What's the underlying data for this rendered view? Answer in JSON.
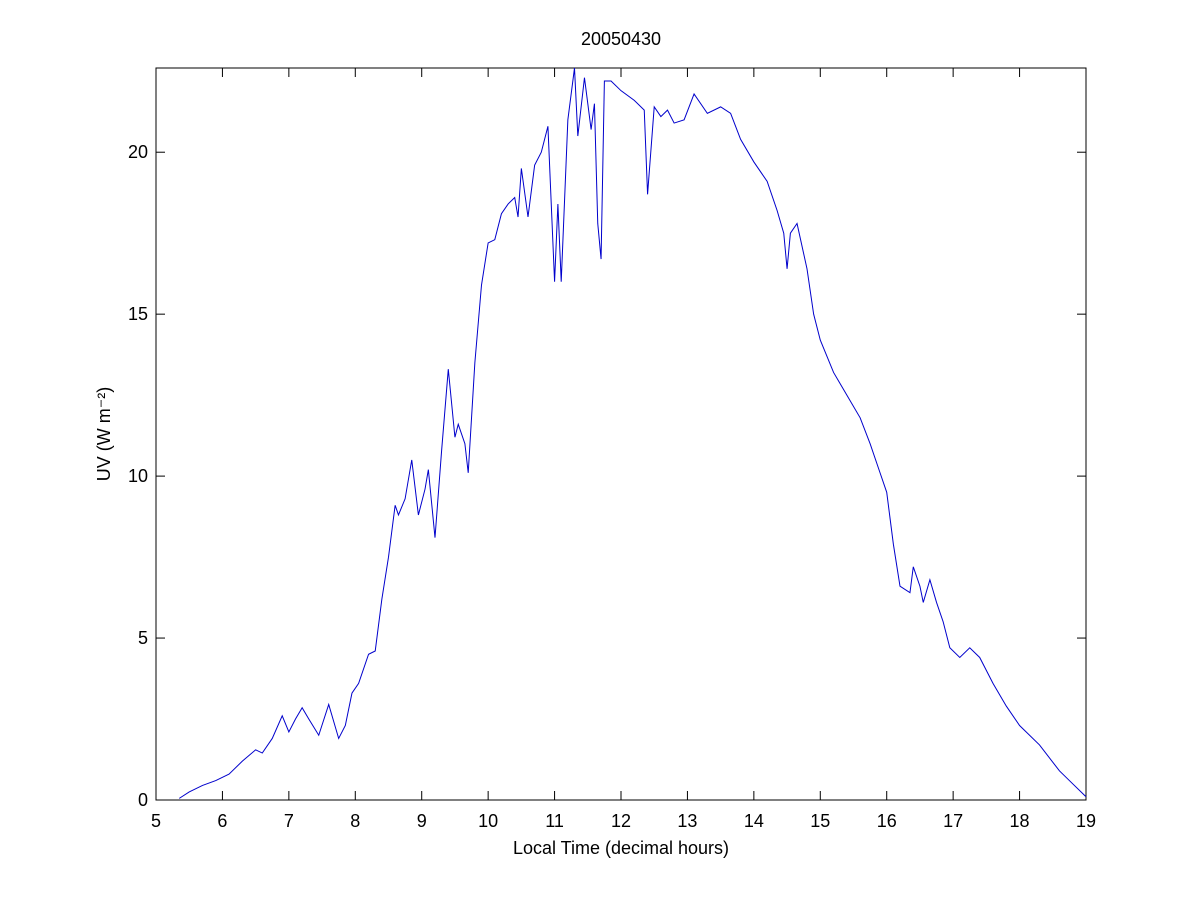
{
  "chart_data": {
    "type": "line",
    "title": "20050430",
    "xlabel": "Local Time (decimal hours)",
    "ylabel": "UV (W m⁻²)",
    "xlim": [
      5,
      19
    ],
    "ylim": [
      0,
      22.6
    ],
    "xticks": [
      5,
      6,
      7,
      8,
      9,
      10,
      11,
      12,
      13,
      14,
      15,
      16,
      17,
      18,
      19
    ],
    "yticks": [
      0,
      5,
      10,
      15,
      20
    ],
    "series": [
      {
        "color": "#0000cc",
        "x": [
          5.35,
          5.5,
          5.7,
          5.9,
          6.1,
          6.3,
          6.5,
          6.6,
          6.75,
          6.9,
          7.0,
          7.1,
          7.2,
          7.3,
          7.45,
          7.6,
          7.75,
          7.85,
          7.95,
          8.05,
          8.2,
          8.3,
          8.4,
          8.5,
          8.6,
          8.65,
          8.75,
          8.85,
          8.95,
          9.05,
          9.1,
          9.2,
          9.3,
          9.4,
          9.5,
          9.55,
          9.65,
          9.7,
          9.8,
          9.9,
          10.0,
          10.1,
          10.2,
          10.3,
          10.4,
          10.45,
          10.5,
          10.6,
          10.7,
          10.8,
          10.9,
          11.0,
          11.05,
          11.1,
          11.2,
          11.3,
          11.35,
          11.45,
          11.55,
          11.6,
          11.65,
          11.7,
          11.75,
          11.85,
          12.0,
          12.2,
          12.35,
          12.4,
          12.5,
          12.6,
          12.7,
          12.8,
          12.95,
          13.1,
          13.3,
          13.5,
          13.65,
          13.8,
          14.0,
          14.2,
          14.35,
          14.45,
          14.5,
          14.55,
          14.65,
          14.8,
          14.9,
          15.0,
          15.2,
          15.4,
          15.6,
          15.75,
          15.9,
          16.0,
          16.1,
          16.2,
          16.35,
          16.4,
          16.5,
          16.55,
          16.65,
          16.75,
          16.85,
          16.95,
          17.1,
          17.25,
          17.4,
          17.6,
          17.8,
          18.0,
          18.3,
          18.6,
          18.8,
          19.0
        ],
        "values": [
          0.05,
          0.25,
          0.45,
          0.6,
          0.8,
          1.2,
          1.55,
          1.45,
          1.9,
          2.6,
          2.1,
          2.5,
          2.85,
          2.5,
          2.0,
          2.95,
          1.9,
          2.3,
          3.3,
          3.6,
          4.5,
          4.6,
          6.2,
          7.5,
          9.1,
          8.8,
          9.3,
          10.5,
          8.8,
          9.6,
          10.2,
          8.1,
          10.8,
          13.3,
          11.2,
          11.6,
          11.0,
          10.1,
          13.5,
          15.9,
          17.2,
          17.3,
          18.1,
          18.4,
          18.6,
          18.0,
          19.5,
          18.0,
          19.6,
          20.0,
          20.8,
          16.0,
          18.4,
          16.0,
          21.0,
          22.6,
          20.5,
          22.3,
          20.7,
          21.5,
          17.8,
          16.7,
          22.2,
          22.2,
          21.9,
          21.6,
          21.3,
          18.7,
          21.4,
          21.1,
          21.3,
          20.9,
          21.0,
          21.8,
          21.2,
          21.4,
          21.2,
          20.4,
          19.7,
          19.1,
          18.2,
          17.5,
          16.4,
          17.5,
          17.8,
          16.4,
          15.0,
          14.2,
          13.2,
          12.5,
          11.8,
          11.0,
          10.1,
          9.5,
          7.9,
          6.6,
          6.4,
          7.2,
          6.6,
          6.1,
          6.8,
          6.1,
          5.5,
          4.7,
          4.4,
          4.7,
          4.4,
          3.6,
          2.9,
          2.3,
          1.7,
          0.9,
          0.5,
          0.1
        ]
      }
    ]
  }
}
